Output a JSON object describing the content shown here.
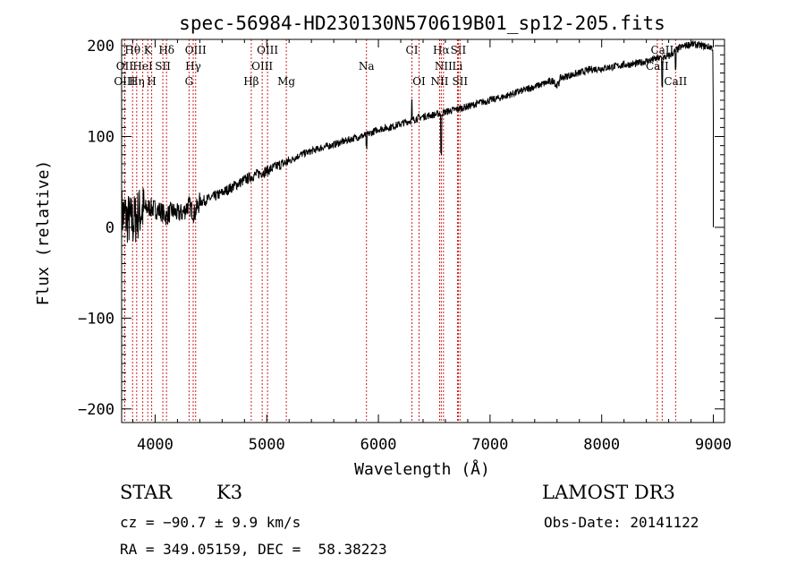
{
  "chart_data": {
    "type": "line",
    "title": "spec-56984-HD230130N570619B01_sp12-205.fits",
    "xlabel": "Wavelength (Å)",
    "ylabel": "Flux (relative)",
    "xlim": [
      3700,
      9100
    ],
    "ylim": [
      -215,
      207
    ],
    "xticks": [
      4000,
      5000,
      6000,
      7000,
      8000,
      9000
    ],
    "xtick_labels": [
      "4000",
      "5000",
      "6000",
      "7000",
      "8000",
      "9000"
    ],
    "yticks": [
      -200,
      -100,
      0,
      100,
      200
    ],
    "ytick_labels": [
      "−200",
      "−100",
      "0",
      "100",
      "200"
    ],
    "grid": false,
    "series": [
      {
        "name": "spectrum",
        "x": [
          3700,
          3750,
          3800,
          3850,
          3900,
          3950,
          4000,
          4050,
          4100,
          4150,
          4200,
          4250,
          4300,
          4350,
          4400,
          4500,
          4600,
          4700,
          4800,
          4900,
          5000,
          5100,
          5200,
          5300,
          5400,
          5500,
          5600,
          5700,
          5800,
          5900,
          6000,
          6100,
          6200,
          6300,
          6400,
          6500,
          6600,
          6700,
          6800,
          6900,
          7000,
          7100,
          7200,
          7300,
          7400,
          7500,
          7600,
          7700,
          7800,
          7900,
          8000,
          8100,
          8200,
          8300,
          8400,
          8500,
          8600,
          8700,
          8800,
          8900,
          9000
        ],
        "y": [
          15,
          10,
          5,
          15,
          20,
          22,
          20,
          18,
          12,
          18,
          15,
          16,
          25,
          15,
          28,
          32,
          38,
          45,
          52,
          58,
          62,
          68,
          73,
          80,
          84,
          88,
          91,
          95,
          99,
          102,
          108,
          110,
          114,
          118,
          122,
          124,
          127,
          130,
          133,
          137,
          140,
          143,
          147,
          151,
          155,
          159,
          163,
          167,
          170,
          174,
          175,
          177,
          179,
          180,
          183,
          186,
          188,
          198,
          202,
          200,
          198
        ]
      }
    ],
    "line_markers": [
      {
        "label": "Hθ",
        "x": 3798,
        "row": 1
      },
      {
        "label": "K",
        "x": 3934,
        "row": 1
      },
      {
        "label": "Hδ",
        "x": 4102,
        "row": 1
      },
      {
        "label": "OIII",
        "x": 4363,
        "row": 1
      },
      {
        "label": "OIII",
        "x": 5007,
        "row": 1
      },
      {
        "label": "CI",
        "x": 6300,
        "row": 1
      },
      {
        "label": "Hα",
        "x": 6563,
        "row": 1
      },
      {
        "label": "SII",
        "x": 6716,
        "row": 1
      },
      {
        "label": "CaII",
        "x": 8542,
        "row": 1
      },
      {
        "label": "OII",
        "x": 3727,
        "row": 2
      },
      {
        "label": "HeI",
        "x": 3889,
        "row": 2
      },
      {
        "label": "SII",
        "x": 4069,
        "row": 2
      },
      {
        "label": "Hγ",
        "x": 4341,
        "row": 2
      },
      {
        "label": "OIII",
        "x": 4959,
        "row": 2
      },
      {
        "label": "Na",
        "x": 5893,
        "row": 2
      },
      {
        "label": "NII",
        "x": 6583,
        "row": 2
      },
      {
        "label": "Li",
        "x": 6708,
        "row": 2
      },
      {
        "label": "CaII",
        "x": 8498,
        "row": 2
      },
      {
        "label": "OIII",
        "x": 3727,
        "row": 3
      },
      {
        "label": "Hη",
        "x": 3835,
        "row": 3
      },
      {
        "label": "H",
        "x": 3969,
        "row": 3
      },
      {
        "label": "G",
        "x": 4304,
        "row": 3
      },
      {
        "label": "Hβ",
        "x": 4861,
        "row": 3
      },
      {
        "label": "Mg",
        "x": 5175,
        "row": 3
      },
      {
        "label": "OI",
        "x": 6364,
        "row": 3
      },
      {
        "label": "NII",
        "x": 6548,
        "row": 3
      },
      {
        "label": "SII",
        "x": 6731,
        "row": 3
      },
      {
        "label": "CaII",
        "x": 8662,
        "row": 3
      }
    ]
  },
  "info": {
    "object_class": "STAR",
    "subclass": "K3",
    "survey": "LAMOST DR3",
    "cz": "cz = −90.7 ± 9.9 km/s",
    "obs_date": "Obs-Date: 20141122",
    "coords": "RA = 349.05159, DEC =  58.38223"
  }
}
